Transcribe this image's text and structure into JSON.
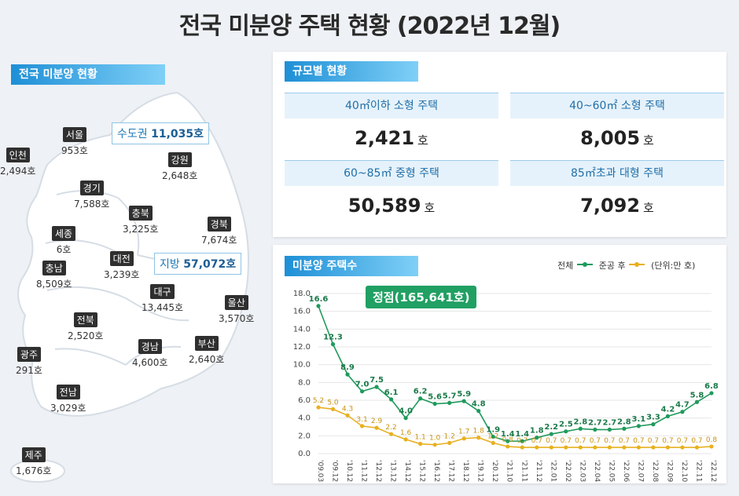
{
  "title": "전국 미분양 주택 현황 (2022년 12월)",
  "map": {
    "tag": "전국 미분양 현황",
    "capital_callout": {
      "label": "수도권",
      "value": "11,035호"
    },
    "local_callout": {
      "label": "지방",
      "value": "57,072호"
    },
    "regions": [
      {
        "name": "인천",
        "count": "2,494호"
      },
      {
        "name": "서울",
        "count": "953호"
      },
      {
        "name": "강원",
        "count": "2,648호"
      },
      {
        "name": "경기",
        "count": "7,588호"
      },
      {
        "name": "충북",
        "count": "3,225호"
      },
      {
        "name": "경북",
        "count": "7,674호"
      },
      {
        "name": "세종",
        "count": "6호"
      },
      {
        "name": "대전",
        "count": "3,239호"
      },
      {
        "name": "충남",
        "count": "8,509호"
      },
      {
        "name": "대구",
        "count": "13,445호"
      },
      {
        "name": "울산",
        "count": "3,570호"
      },
      {
        "name": "전북",
        "count": "2,520호"
      },
      {
        "name": "광주",
        "count": "291호"
      },
      {
        "name": "경남",
        "count": "4,600호"
      },
      {
        "name": "부산",
        "count": "2,640호"
      },
      {
        "name": "전남",
        "count": "3,029호"
      },
      {
        "name": "제주",
        "count": "1,676호"
      }
    ]
  },
  "size": {
    "tag": "규모별 현황",
    "cells": [
      {
        "label": "40㎡이하 소형 주택",
        "value": "2,421",
        "unit": "호"
      },
      {
        "label": "40~60㎡ 소형 주택",
        "value": "8,005",
        "unit": "호"
      },
      {
        "label": "60~85㎡ 중형 주택",
        "value": "50,589",
        "unit": "호"
      },
      {
        "label": "85㎡초과 대형 주택",
        "value": "7,092",
        "unit": "호"
      }
    ]
  },
  "trend": {
    "tag": "미분양 주택수",
    "legend_total": "전체",
    "legend_after": "준공 후",
    "unit_note": "(단위:만 호)",
    "peak_label": "정점(165,641호)",
    "colors": {
      "total": "#1f9a5c",
      "after": "#e8b020"
    }
  },
  "chart_data": {
    "type": "line",
    "x": [
      "'09.03",
      "'09.12",
      "'10.12",
      "'11.12",
      "'12.12",
      "'13.12",
      "'14.12",
      "'15.12",
      "'16.12",
      "'17.12",
      "'18.12",
      "'19.12",
      "'20.12",
      "'21.10",
      "'21.11",
      "'21.12",
      "'22.01",
      "'22.02",
      "'22.03",
      "'22.04",
      "'22.05",
      "'22.06",
      "'22.07",
      "'22.08",
      "'22.09",
      "'22.10",
      "'22.11",
      "'22.12"
    ],
    "series": [
      {
        "name": "전체",
        "values": [
          16.6,
          12.3,
          8.9,
          7.0,
          7.5,
          6.1,
          4.0,
          6.2,
          5.6,
          5.7,
          5.9,
          4.8,
          1.9,
          1.4,
          1.4,
          1.8,
          2.2,
          2.5,
          2.8,
          2.7,
          2.7,
          2.8,
          3.1,
          3.3,
          4.2,
          4.7,
          5.8,
          6.8
        ]
      },
      {
        "name": "준공 후",
        "values": [
          5.2,
          5.0,
          4.3,
          3.1,
          2.9,
          2.2,
          1.6,
          1.1,
          1.0,
          1.2,
          1.7,
          1.8,
          1.2,
          0.8,
          0.7,
          0.7,
          0.7,
          0.7,
          0.7,
          0.7,
          0.7,
          0.7,
          0.7,
          0.7,
          0.7,
          0.7,
          0.7,
          0.8
        ]
      }
    ],
    "yticks": [
      "0.0",
      "2.0",
      "4.0",
      "6.0",
      "8.0",
      "10.0",
      "12.0",
      "14.0",
      "16.0",
      "18.0"
    ],
    "ylim": [
      0,
      18
    ]
  }
}
